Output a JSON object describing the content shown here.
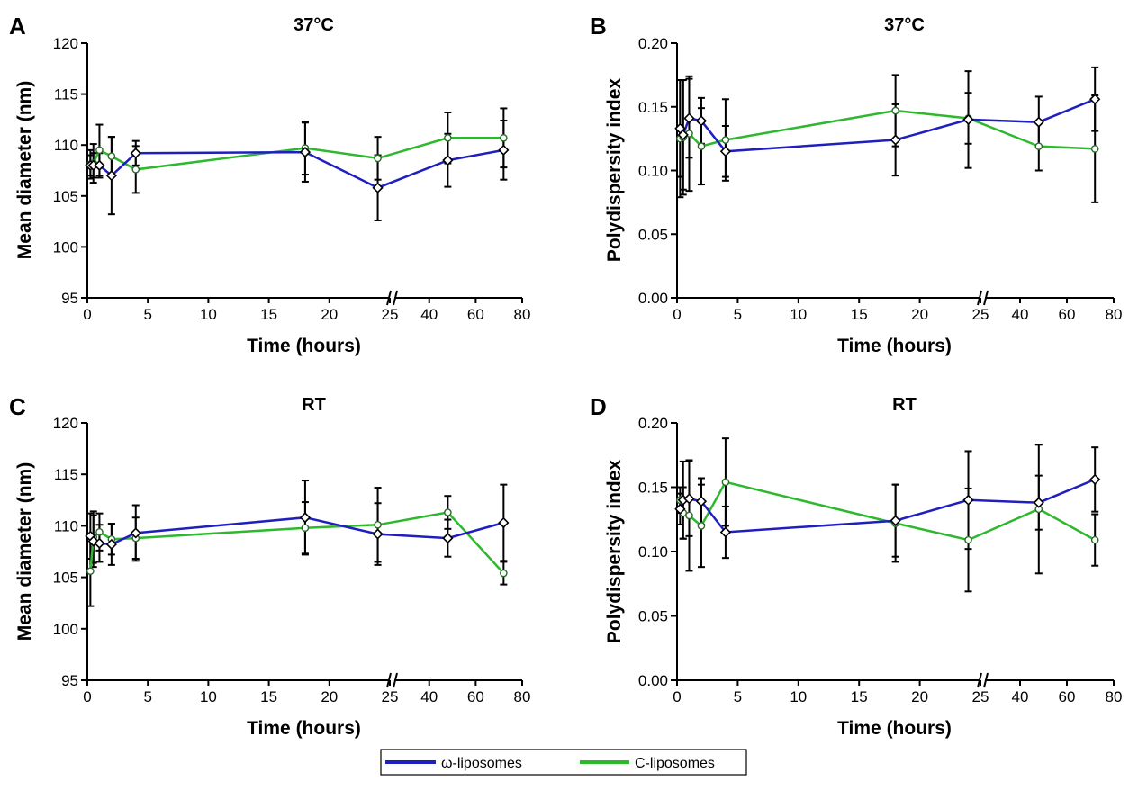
{
  "legend": {
    "placement": "bottom-center",
    "items": [
      {
        "label": "ω-liposomes",
        "color": "#1f1fbf"
      },
      {
        "label": "C-liposomes",
        "color": "#2db82d"
      }
    ]
  },
  "chart_data": [
    {
      "panel": "A",
      "type": "line",
      "title": "37°C",
      "xlabel": "Time (hours)",
      "ylabel": "Mean diameter (nm)",
      "ylim": [
        95,
        120
      ],
      "yticks": [
        "95",
        "100",
        "105",
        "110",
        "115",
        "120"
      ],
      "x_axis_break": true,
      "xlim_first": [
        0,
        25
      ],
      "xticks_first": [
        "0",
        "5",
        "10",
        "15",
        "20",
        "25"
      ],
      "xlim_second": [
        25,
        80
      ],
      "xticks_second": [
        "40",
        "60",
        "80"
      ],
      "series": [
        {
          "name": "ω-liposomes",
          "color": "#1f1fbf",
          "x": [
            0.25,
            0.5,
            1,
            2,
            4,
            18,
            24,
            48,
            72
          ],
          "y": [
            108.0,
            108.0,
            108.0,
            107.0,
            109.2,
            109.3,
            105.8,
            108.5,
            109.5
          ],
          "err": [
            1.0,
            1.2,
            1.2,
            3.8,
            1.2,
            2.9,
            3.2,
            2.6,
            2.9
          ]
        },
        {
          "name": "C-liposomes",
          "color": "#2db82d",
          "x": [
            0.25,
            0.5,
            1,
            2,
            4,
            18,
            24,
            48,
            72
          ],
          "y": [
            108.1,
            108.2,
            109.5,
            108.9,
            107.6,
            109.7,
            108.7,
            110.7,
            110.7
          ],
          "err": [
            1.4,
            1.9,
            2.5,
            1.9,
            2.3,
            2.6,
            2.1,
            2.5,
            2.9
          ]
        }
      ]
    },
    {
      "panel": "B",
      "type": "line",
      "title": "37°C",
      "xlabel": "Time (hours)",
      "ylabel": "Polydispersity index",
      "ylim": [
        0.0,
        0.2
      ],
      "yticks": [
        "0.00",
        "0.05",
        "0.10",
        "0.15",
        "0.20"
      ],
      "x_axis_break": true,
      "xlim_first": [
        0,
        25
      ],
      "xticks_first": [
        "0",
        "5",
        "10",
        "15",
        "20",
        "25"
      ],
      "xlim_second": [
        25,
        80
      ],
      "xticks_second": [
        "40",
        "60",
        "80"
      ],
      "series": [
        {
          "name": "ω-liposomes",
          "color": "#1f1fbf",
          "x": [
            0.25,
            0.5,
            1,
            2,
            4,
            18,
            24,
            48,
            72
          ],
          "y": [
            0.133,
            0.128,
            0.141,
            0.139,
            0.115,
            0.124,
            0.14,
            0.138,
            0.156
          ],
          "err": [
            0.038,
            0.043,
            0.031,
            0.018,
            0.02,
            0.028,
            0.038,
            0.02,
            0.025
          ]
        },
        {
          "name": "C-liposomes",
          "color": "#2db82d",
          "x": [
            0.25,
            0.5,
            1,
            2,
            4,
            18,
            24,
            48,
            72
          ],
          "y": [
            0.125,
            0.126,
            0.129,
            0.119,
            0.124,
            0.147,
            0.141,
            0.119,
            0.117
          ],
          "err": [
            0.046,
            0.045,
            0.045,
            0.03,
            0.032,
            0.028,
            0.02,
            0.019,
            0.042
          ]
        }
      ]
    },
    {
      "panel": "C",
      "type": "line",
      "title": "RT",
      "xlabel": "Time (hours)",
      "ylabel": "Mean diameter (nm)",
      "ylim": [
        95,
        120
      ],
      "yticks": [
        "95",
        "100",
        "105",
        "110",
        "115",
        "120"
      ],
      "x_axis_break": true,
      "xlim_first": [
        0,
        25
      ],
      "xticks_first": [
        "0",
        "5",
        "10",
        "15",
        "20",
        "25"
      ],
      "xlim_second": [
        25,
        80
      ],
      "xticks_second": [
        "40",
        "60",
        "80"
      ],
      "series": [
        {
          "name": "ω-liposomes",
          "color": "#1f1fbf",
          "x": [
            0.25,
            0.5,
            1,
            2,
            4,
            18,
            24,
            48,
            72
          ],
          "y": [
            109.0,
            108.5,
            108.3,
            108.2,
            109.3,
            110.8,
            109.2,
            108.8,
            110.3
          ],
          "err": [
            2.2,
            2.5,
            1.8,
            2.0,
            2.7,
            3.6,
            3.0,
            1.8,
            3.7
          ]
        },
        {
          "name": "C-liposomes",
          "color": "#2db82d",
          "x": [
            0.25,
            0.5,
            1,
            2,
            4,
            18,
            24,
            48,
            72
          ],
          "y": [
            105.6,
            108.9,
            109.4,
            108.7,
            108.8,
            109.8,
            110.1,
            111.3,
            105.4
          ],
          "err": [
            3.4,
            2.5,
            1.8,
            1.5,
            2.0,
            2.5,
            3.6,
            1.6,
            1.1
          ]
        }
      ]
    },
    {
      "panel": "D",
      "type": "line",
      "title": "RT",
      "xlabel": "Time (hours)",
      "ylabel": "Polydispersity index",
      "ylim": [
        0.0,
        0.2
      ],
      "yticks": [
        "0.00",
        "0.05",
        "0.10",
        "0.15",
        "0.20"
      ],
      "x_axis_break": true,
      "xlim_first": [
        0,
        25
      ],
      "xticks_first": [
        "0",
        "5",
        "10",
        "15",
        "20",
        "25"
      ],
      "xlim_second": [
        25,
        80
      ],
      "xticks_second": [
        "40",
        "60",
        "80"
      ],
      "series": [
        {
          "name": "ω-liposomes",
          "color": "#1f1fbf",
          "x": [
            0.25,
            0.5,
            1,
            2,
            4,
            18,
            24,
            48,
            72
          ],
          "y": [
            0.133,
            0.14,
            0.141,
            0.139,
            0.115,
            0.124,
            0.14,
            0.138,
            0.156
          ],
          "err": [
            0.012,
            0.03,
            0.029,
            0.018,
            0.02,
            0.028,
            0.038,
            0.021,
            0.025
          ]
        },
        {
          "name": "C-liposomes",
          "color": "#2db82d",
          "x": [
            0.25,
            0.5,
            1,
            2,
            4,
            18,
            24,
            48,
            72
          ],
          "y": [
            0.14,
            0.13,
            0.128,
            0.12,
            0.154,
            0.122,
            0.109,
            0.133,
            0.109
          ],
          "err": [
            0.01,
            0.02,
            0.043,
            0.032,
            0.034,
            0.03,
            0.04,
            0.05,
            0.02
          ]
        }
      ]
    }
  ]
}
